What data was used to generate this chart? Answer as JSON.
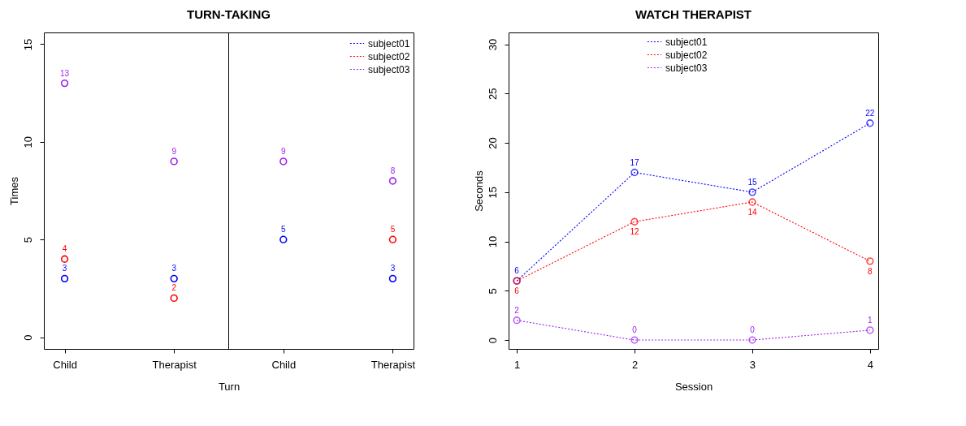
{
  "chart_data": [
    {
      "type": "scatter",
      "title": "TURN-TAKING",
      "xlabel": "Turn",
      "ylabel": "Times",
      "categories": [
        "Child",
        "Therapist",
        "Child",
        "Therapist"
      ],
      "series": [
        {
          "name": "subject01",
          "color": "#0000ff",
          "values": [
            3,
            3,
            5,
            3
          ]
        },
        {
          "name": "subject02",
          "color": "#ff0000",
          "values": [
            4,
            2,
            null,
            5
          ]
        },
        {
          "name": "subject03",
          "color": "#a020f0",
          "values": [
            13,
            9,
            9,
            8
          ]
        }
      ],
      "ylim": [
        -0.6,
        15.6
      ],
      "yticks": [
        0,
        5,
        10,
        15
      ],
      "grid": false,
      "legend": "top right",
      "marker": "circle",
      "data_labels": true,
      "line_style": "dotted"
    },
    {
      "type": "line",
      "title": "WATCH THERAPIST",
      "xlabel": "Session",
      "ylabel": "Seconds",
      "x": [
        1,
        2,
        3,
        4
      ],
      "series": [
        {
          "name": "subject01",
          "color": "#0000ff",
          "values": [
            6,
            17,
            15,
            22
          ]
        },
        {
          "name": "subject02",
          "color": "#ff0000",
          "values": [
            6,
            12,
            14,
            8
          ]
        },
        {
          "name": "subject03",
          "color": "#a020f0",
          "values": [
            2,
            0,
            0,
            1
          ]
        }
      ],
      "xlim": [
        0.93,
        4.07
      ],
      "xticks": [
        1,
        2,
        3,
        4
      ],
      "ylim": [
        -0.9,
        31.2
      ],
      "yticks": [
        0,
        5,
        10,
        15,
        20,
        25,
        30
      ],
      "grid": false,
      "legend": "top",
      "marker": "circle",
      "data_labels": true,
      "line_style": "dotted"
    }
  ]
}
